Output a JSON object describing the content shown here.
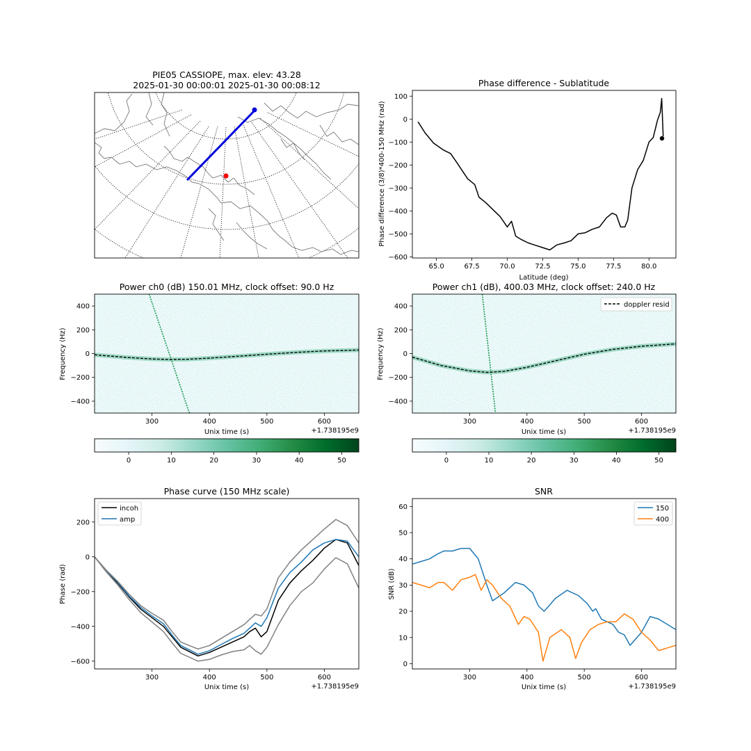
{
  "chart_data": [
    {
      "id": "map",
      "type": "map",
      "title": "PIE05 CASSIOPE, max. elev: 43.28",
      "subtitle": "2025-01-30 00:00:01 2025-01-30 00:08:12",
      "track_color": "#0000dd",
      "station_color": "#ff0000"
    },
    {
      "id": "phasediff",
      "type": "line",
      "title": "Phase difference - Sublatitude",
      "xlabel": "Latitude (deg)",
      "ylabel": "Phase difference (3/8)*400-150 MHz (rad)",
      "xlim": [
        63.3,
        81.9
      ],
      "ylim": [
        -605,
        125
      ],
      "xticks": [
        65.0,
        67.5,
        70.0,
        72.5,
        75.0,
        77.5,
        80.0
      ],
      "xtick_labels": [
        "65.0",
        "67.5",
        "70.0",
        "72.5",
        "75.0",
        "77.5",
        "80.0"
      ],
      "yticks": [
        100,
        0,
        -100,
        -200,
        -300,
        -400,
        -500,
        -600
      ],
      "ytick_labels": [
        "100",
        "0",
        "−100",
        "−200",
        "−300",
        "−400",
        "−500",
        "−600"
      ],
      "series": [
        {
          "color": "#000000",
          "x": [
            63.7,
            64.2,
            64.8,
            65.5,
            66.0,
            66.5,
            67.2,
            67.7,
            68.0,
            68.5,
            69.0,
            69.5,
            70.0,
            70.3,
            70.6,
            71.0,
            71.5,
            72.0,
            72.5,
            73.0,
            73.5,
            74.0,
            74.5,
            75.0,
            75.5,
            76.0,
            76.5,
            77.0,
            77.4,
            77.7,
            78.0,
            78.3,
            78.5,
            78.8,
            79.2,
            79.6,
            80.0,
            80.3,
            80.6,
            80.8,
            80.9,
            81.0
          ],
          "y": [
            -12,
            -60,
            -105,
            -135,
            -150,
            -195,
            -260,
            -285,
            -340,
            -365,
            -395,
            -425,
            -470,
            -445,
            -510,
            -525,
            -540,
            -550,
            -560,
            -570,
            -548,
            -540,
            -530,
            -500,
            -495,
            -480,
            -470,
            -430,
            -410,
            -418,
            -470,
            -470,
            -440,
            -300,
            -220,
            -180,
            -100,
            -80,
            -5,
            30,
            90,
            -75
          ]
        }
      ]
    },
    {
      "id": "power0",
      "type": "heatmap",
      "title": "Power ch0 (dB) 150.01 MHz, clock offset: 90.0 Hz",
      "xlabel": "Unix time (s)",
      "ylabel": "Frequency (Hz)",
      "x_offset_label": "+1.738195e9",
      "xlim": [
        200,
        660
      ],
      "ylim": [
        -500,
        500
      ],
      "xticks": [
        300,
        400,
        500,
        600
      ],
      "xtick_labels": [
        "300",
        "400",
        "500",
        "600"
      ],
      "yticks": [
        400,
        200,
        0,
        -200,
        -400
      ],
      "ytick_labels": [
        "400",
        "200",
        "0",
        "−200",
        "−400"
      ],
      "curve": {
        "x": [
          200,
          250,
          300,
          330,
          360,
          400,
          450,
          500,
          550,
          600,
          660
        ],
        "y": [
          -10,
          -30,
          -45,
          -50,
          -48,
          -38,
          -22,
          -5,
          10,
          22,
          30
        ]
      },
      "streak": {
        "x": [
          295,
          365
        ],
        "y": [
          500,
          -500
        ]
      },
      "colorbar": {
        "min": -8,
        "max": 54,
        "ticks": [
          0,
          10,
          20,
          30,
          40,
          50
        ],
        "tick_labels": [
          "0",
          "10",
          "20",
          "30",
          "40",
          "50"
        ]
      }
    },
    {
      "id": "power1",
      "type": "heatmap",
      "title": "Power ch1 (dB), 400.03 MHz, clock offset: 240.0 Hz",
      "xlabel": "Unix time (s)",
      "ylabel": "Frequency (Hz)",
      "x_offset_label": "+1.738195e9",
      "xlim": [
        200,
        660
      ],
      "ylim": [
        -500,
        500
      ],
      "xticks": [
        300,
        400,
        500,
        600
      ],
      "xtick_labels": [
        "300",
        "400",
        "500",
        "600"
      ],
      "yticks": [
        400,
        200,
        0,
        -200,
        -400
      ],
      "ytick_labels": [
        "400",
        "200",
        "0",
        "−200",
        "−400"
      ],
      "legend": "doppler resid",
      "curve": {
        "x": [
          200,
          250,
          300,
          330,
          360,
          400,
          450,
          500,
          550,
          600,
          660
        ],
        "y": [
          -30,
          -100,
          -145,
          -158,
          -150,
          -115,
          -60,
          -5,
          35,
          62,
          82
        ]
      },
      "streak": {
        "x": [
          322,
          345
        ],
        "y": [
          500,
          -500
        ]
      },
      "colorbar": {
        "min": -8,
        "max": 54,
        "ticks": [
          0,
          10,
          20,
          30,
          40,
          50
        ],
        "tick_labels": [
          "0",
          "10",
          "20",
          "30",
          "40",
          "50"
        ]
      }
    },
    {
      "id": "phasecurve",
      "type": "line",
      "title": "Phase curve (150 MHz scale)",
      "xlabel": "Unix time (s)",
      "ylabel": "Phase (rad)",
      "x_offset_label": "+1.738195e9",
      "xlim": [
        200,
        660
      ],
      "ylim": [
        -645,
        335
      ],
      "xticks": [
        300,
        400,
        500,
        600
      ],
      "xtick_labels": [
        "300",
        "400",
        "500",
        "600"
      ],
      "yticks": [
        200,
        0,
        -200,
        -400,
        -600
      ],
      "ytick_labels": [
        "200",
        "0",
        "−200",
        "−400",
        "−600"
      ],
      "series": [
        {
          "name": "incoh",
          "color": "#000000",
          "x": [
            200,
            220,
            240,
            260,
            280,
            300,
            320,
            335,
            350,
            380,
            400,
            420,
            440,
            460,
            470,
            480,
            490,
            500,
            520,
            540,
            560,
            580,
            600,
            620,
            640,
            660
          ],
          "y": [
            0,
            -80,
            -150,
            -230,
            -300,
            -350,
            -400,
            -460,
            -520,
            -570,
            -550,
            -520,
            -490,
            -460,
            -430,
            -410,
            -460,
            -430,
            -250,
            -150,
            -80,
            -20,
            50,
            100,
            80,
            -50
          ]
        },
        {
          "name": "amp",
          "color": "#1f77b4",
          "x": [
            200,
            220,
            240,
            260,
            280,
            300,
            320,
            335,
            350,
            380,
            400,
            420,
            440,
            460,
            470,
            480,
            490,
            500,
            520,
            540,
            560,
            580,
            600,
            620,
            640,
            660
          ],
          "y": [
            0,
            -78,
            -145,
            -225,
            -290,
            -340,
            -385,
            -450,
            -510,
            -560,
            -540,
            -505,
            -470,
            -440,
            -410,
            -380,
            -400,
            -350,
            -180,
            -90,
            -30,
            40,
            80,
            100,
            90,
            0
          ]
        },
        {
          "color": "#808080",
          "x": [
            200,
            220,
            240,
            260,
            280,
            300,
            320,
            335,
            350,
            380,
            400,
            420,
            440,
            460,
            470,
            480,
            490,
            500,
            520,
            540,
            560,
            580,
            600,
            620,
            640,
            660
          ],
          "y": [
            0,
            -75,
            -140,
            -215,
            -280,
            -325,
            -365,
            -430,
            -490,
            -530,
            -510,
            -470,
            -430,
            -390,
            -360,
            -330,
            -340,
            -300,
            -120,
            -30,
            40,
            100,
            160,
            215,
            180,
            80
          ]
        },
        {
          "color": "#808080",
          "x": [
            200,
            220,
            240,
            260,
            280,
            300,
            320,
            335,
            350,
            380,
            400,
            420,
            440,
            460,
            470,
            480,
            490,
            500,
            520,
            540,
            560,
            580,
            600,
            620,
            640,
            660
          ],
          "y": [
            0,
            -85,
            -160,
            -245,
            -320,
            -375,
            -430,
            -495,
            -555,
            -600,
            -590,
            -565,
            -545,
            -535,
            -510,
            -540,
            -560,
            -520,
            -390,
            -280,
            -200,
            -150,
            -70,
            -5,
            -40,
            -180
          ]
        }
      ]
    },
    {
      "id": "snr",
      "type": "line",
      "title": "SNR",
      "xlabel": "Unix time (s)",
      "ylabel": "SNR (dB)",
      "x_offset_label": "+1.738195e9",
      "xlim": [
        200,
        660
      ],
      "ylim": [
        -2,
        63
      ],
      "xticks": [
        300,
        400,
        500,
        600
      ],
      "xtick_labels": [
        "300",
        "400",
        "500",
        "600"
      ],
      "yticks": [
        60,
        50,
        40,
        30,
        20,
        10,
        0
      ],
      "ytick_labels": [
        "60",
        "50",
        "40",
        "30",
        "20",
        "10",
        "0"
      ],
      "series": [
        {
          "name": "150",
          "color": "#1f77b4",
          "x": [
            200,
            215,
            230,
            245,
            255,
            270,
            285,
            300,
            315,
            330,
            340,
            360,
            380,
            395,
            410,
            420,
            430,
            450,
            470,
            490,
            505,
            515,
            520,
            530,
            550,
            560,
            570,
            580,
            600,
            615,
            630,
            645,
            660
          ],
          "y": [
            38,
            39,
            40,
            42,
            43,
            43,
            44,
            44,
            40,
            30,
            24,
            27,
            31,
            30,
            27,
            22,
            20,
            25,
            28,
            26,
            23,
            20,
            21,
            17,
            15,
            12,
            11,
            7,
            12,
            18,
            17,
            15,
            13
          ]
        },
        {
          "name": "400",
          "color": "#ff7f0e",
          "x": [
            200,
            215,
            230,
            245,
            255,
            270,
            285,
            300,
            310,
            320,
            330,
            340,
            355,
            370,
            385,
            395,
            405,
            420,
            428,
            440,
            460,
            475,
            485,
            495,
            510,
            525,
            540,
            555,
            570,
            585,
            600,
            615,
            630,
            645,
            660
          ],
          "y": [
            31,
            30,
            29,
            31,
            31,
            28,
            32,
            33,
            34,
            28,
            32,
            30,
            25,
            22,
            15,
            18,
            17,
            12,
            1,
            10,
            13,
            10,
            2,
            8,
            13,
            15,
            16,
            16,
            19,
            17,
            12,
            9,
            5,
            6,
            7
          ]
        }
      ]
    }
  ]
}
